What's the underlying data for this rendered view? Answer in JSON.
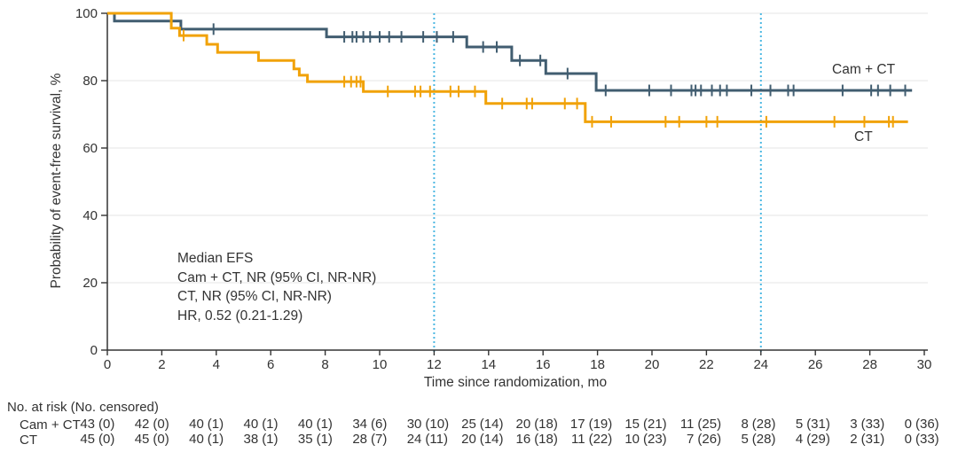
{
  "colors": {
    "cam_ct": "#415D70",
    "ct": "#F1A208",
    "reference_line": "#4CB8E2",
    "grid": "#E9E9E9",
    "axis": "#333333",
    "text": "#333333"
  },
  "chart_data": {
    "type": "line",
    "subtype": "kaplan-meier-step",
    "title": "",
    "xlabel": "Time since randomization, mo",
    "ylabel": "Probability of event-free survival, %",
    "xlim": [
      0,
      30
    ],
    "ylim": [
      0,
      100
    ],
    "x_ticks": [
      0,
      2,
      4,
      6,
      8,
      10,
      12,
      14,
      16,
      18,
      20,
      22,
      24,
      26,
      28,
      30
    ],
    "y_ticks": [
      0,
      20,
      40,
      60,
      80,
      100
    ],
    "grid": "horizontal",
    "reference_lines_x": [
      12,
      24
    ],
    "annotation": [
      "Median EFS",
      "Cam + CT, NR (95% CI, NR-NR)",
      "CT, NR (95% CI, NR-NR)",
      "HR, 0.52 (0.21-1.29)"
    ],
    "series": [
      {
        "name": "Cam + CT",
        "color": "#415D70",
        "steps": [
          [
            0,
            100
          ],
          [
            0.26,
            100
          ],
          [
            0.26,
            97.7
          ],
          [
            2.7,
            97.7
          ],
          [
            2.7,
            95.3
          ],
          [
            8.05,
            95.3
          ],
          [
            8.05,
            93.0
          ],
          [
            13.2,
            93.0
          ],
          [
            13.2,
            90.0
          ],
          [
            14.85,
            90.0
          ],
          [
            14.85,
            86.0
          ],
          [
            16.1,
            86.0
          ],
          [
            16.1,
            82.1
          ],
          [
            17.95,
            82.1
          ],
          [
            17.95,
            77.1
          ],
          [
            29.55,
            77.1
          ]
        ],
        "censors": [
          [
            3.9,
            95.3
          ],
          [
            8.7,
            93.0
          ],
          [
            9.0,
            93.0
          ],
          [
            9.15,
            93.0
          ],
          [
            9.4,
            93.0
          ],
          [
            9.65,
            93.0
          ],
          [
            10.0,
            93.0
          ],
          [
            10.35,
            93.0
          ],
          [
            10.8,
            93.0
          ],
          [
            11.6,
            93.0
          ],
          [
            12.1,
            93.0
          ],
          [
            12.7,
            93.0
          ],
          [
            13.8,
            90.0
          ],
          [
            14.3,
            90.0
          ],
          [
            15.15,
            86.0
          ],
          [
            15.9,
            86.0
          ],
          [
            16.9,
            82.1
          ],
          [
            18.3,
            77.1
          ],
          [
            19.9,
            77.1
          ],
          [
            20.7,
            77.1
          ],
          [
            21.45,
            77.1
          ],
          [
            21.6,
            77.1
          ],
          [
            21.8,
            77.1
          ],
          [
            22.2,
            77.1
          ],
          [
            22.5,
            77.1
          ],
          [
            22.75,
            77.1
          ],
          [
            23.65,
            77.1
          ],
          [
            24.35,
            77.1
          ],
          [
            25.0,
            77.1
          ],
          [
            25.2,
            77.1
          ],
          [
            27.0,
            77.1
          ],
          [
            28.05,
            77.1
          ],
          [
            28.3,
            77.1
          ],
          [
            28.75,
            77.1
          ],
          [
            29.3,
            77.1
          ]
        ]
      },
      {
        "name": "CT",
        "color": "#F1A208",
        "steps": [
          [
            0,
            100
          ],
          [
            2.35,
            100
          ],
          [
            2.35,
            95.6
          ],
          [
            2.65,
            95.6
          ],
          [
            2.65,
            93.4
          ],
          [
            3.65,
            93.4
          ],
          [
            3.65,
            90.8
          ],
          [
            4.05,
            90.8
          ],
          [
            4.05,
            88.4
          ],
          [
            5.55,
            88.4
          ],
          [
            5.55,
            86.0
          ],
          [
            6.85,
            86.0
          ],
          [
            6.85,
            83.5
          ],
          [
            7.05,
            83.5
          ],
          [
            7.05,
            81.6
          ],
          [
            7.35,
            81.6
          ],
          [
            7.35,
            79.7
          ],
          [
            9.4,
            79.7
          ],
          [
            9.4,
            76.8
          ],
          [
            13.9,
            76.8
          ],
          [
            13.9,
            73.2
          ],
          [
            17.55,
            73.2
          ],
          [
            17.55,
            67.8
          ],
          [
            29.4,
            67.8
          ]
        ],
        "censors": [
          [
            2.8,
            93.4
          ],
          [
            8.7,
            79.7
          ],
          [
            8.95,
            79.7
          ],
          [
            9.15,
            79.7
          ],
          [
            9.3,
            79.7
          ],
          [
            10.3,
            76.8
          ],
          [
            11.3,
            76.8
          ],
          [
            11.5,
            76.8
          ],
          [
            11.85,
            76.8
          ],
          [
            12.6,
            76.8
          ],
          [
            12.9,
            76.8
          ],
          [
            13.5,
            76.8
          ],
          [
            14.5,
            73.2
          ],
          [
            15.4,
            73.2
          ],
          [
            15.6,
            73.2
          ],
          [
            16.8,
            73.2
          ],
          [
            17.25,
            73.2
          ],
          [
            17.8,
            67.8
          ],
          [
            18.5,
            67.8
          ],
          [
            20.5,
            67.8
          ],
          [
            21.0,
            67.8
          ],
          [
            22.0,
            67.8
          ],
          [
            22.4,
            67.8
          ],
          [
            24.2,
            67.8
          ],
          [
            26.7,
            67.8
          ],
          [
            27.8,
            67.8
          ],
          [
            28.7,
            67.8
          ],
          [
            28.85,
            67.8
          ]
        ]
      }
    ]
  },
  "risk_table": {
    "title": "No. at risk (No. censored)",
    "times": [
      0,
      2,
      4,
      6,
      8,
      10,
      12,
      14,
      16,
      18,
      20,
      22,
      24,
      26,
      28,
      30
    ],
    "rows": [
      {
        "label": "Cam + CT",
        "values": [
          "43 (0)",
          "42 (0)",
          "40 (1)",
          "40 (1)",
          "40 (1)",
          "34 (6)",
          "30 (10)",
          "25 (14)",
          "20 (18)",
          "17 (19)",
          "15 (21)",
          "11 (25)",
          "8 (28)",
          "5 (31)",
          "3 (33)",
          "0 (36)"
        ]
      },
      {
        "label": "CT",
        "values": [
          "45 (0)",
          "45 (0)",
          "40 (1)",
          "38 (1)",
          "35 (1)",
          "28 (7)",
          "24 (11)",
          "20 (14)",
          "16 (18)",
          "11 (22)",
          "10 (23)",
          "7 (26)",
          "5 (28)",
          "4 (29)",
          "2 (31)",
          "0 (33)"
        ]
      }
    ]
  }
}
